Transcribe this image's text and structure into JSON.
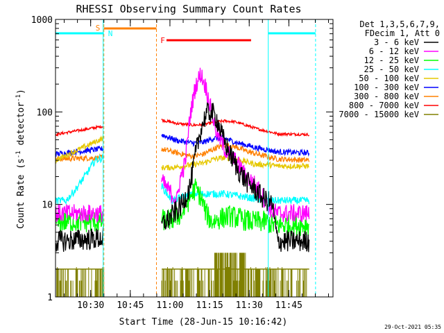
{
  "chart_data": {
    "type": "line",
    "title": "RHESSI Observing Summary Count Rates",
    "xlabel": "Start Time (28-Jun-15 10:16:42)",
    "ylabel_main": "Count Rate (s",
    "ylabel_sup": "-1",
    "ylabel_tail": " detector",
    "ylabel_end": ")",
    "yscale": "log",
    "x_unit": "minutes after 10:16:42",
    "xlim": [
      0,
      105
    ],
    "ylim": [
      1,
      1000
    ],
    "x_ticks": [
      {
        "value": 13.3,
        "label": "10:30"
      },
      {
        "value": 28.3,
        "label": "10:45"
      },
      {
        "value": 43.3,
        "label": "11:00"
      },
      {
        "value": 58.3,
        "label": "11:15"
      },
      {
        "value": 73.3,
        "label": "11:30"
      },
      {
        "value": 88.3,
        "label": "11:45"
      }
    ],
    "y_ticks": [
      {
        "value": 1,
        "label": "1"
      },
      {
        "value": 10,
        "label": "10"
      },
      {
        "value": 100,
        "label": "100"
      },
      {
        "value": 1000,
        "label": "1000"
      }
    ],
    "legend_header": [
      "Det 1,3,5,6,7,9,",
      "FDecim 1, Att 0"
    ],
    "series": [
      {
        "name": "3 - 6 keV",
        "color": "#000000",
        "points": [
          [
            0,
            4
          ],
          [
            18,
            4.3
          ],
          [
            40,
            6
          ],
          [
            43,
            7
          ],
          [
            48,
            10
          ],
          [
            51,
            16
          ],
          [
            53,
            35
          ],
          [
            55,
            65
          ],
          [
            57,
            95
          ],
          [
            59,
            100
          ],
          [
            61,
            85
          ],
          [
            63,
            55
          ],
          [
            66,
            35
          ],
          [
            69,
            24
          ],
          [
            72,
            18
          ],
          [
            75,
            15
          ],
          [
            78,
            12
          ],
          [
            80,
            11
          ],
          [
            82,
            10
          ],
          [
            84,
            4
          ],
          [
            96,
            4
          ]
        ]
      },
      {
        "name": "6 - 12 keV",
        "color": "#ff00ff",
        "points": [
          [
            0,
            8
          ],
          [
            18,
            8
          ],
          [
            40,
            18
          ],
          [
            43,
            14
          ],
          [
            46,
            11
          ],
          [
            47,
            18
          ],
          [
            49,
            28
          ],
          [
            51,
            95
          ],
          [
            53,
            190
          ],
          [
            55,
            260
          ],
          [
            57,
            180
          ],
          [
            59,
            100
          ],
          [
            61,
            60
          ],
          [
            64,
            40
          ],
          [
            67,
            32
          ],
          [
            70,
            25
          ],
          [
            72,
            20
          ],
          [
            75,
            17
          ],
          [
            78,
            13
          ],
          [
            80,
            10
          ],
          [
            82,
            8.5
          ],
          [
            84,
            8
          ],
          [
            96,
            8
          ]
        ]
      },
      {
        "name": "12 - 25 keV",
        "color": "#00ff00",
        "points": [
          [
            0,
            6.5
          ],
          [
            18,
            6.5
          ],
          [
            40,
            6.8
          ],
          [
            44,
            6.8
          ],
          [
            48,
            8
          ],
          [
            51,
            12
          ],
          [
            53,
            15
          ],
          [
            55,
            12
          ],
          [
            57,
            8
          ],
          [
            59,
            6.5
          ],
          [
            62,
            7
          ],
          [
            66,
            7.5
          ],
          [
            70,
            7
          ],
          [
            74,
            6.5
          ],
          [
            78,
            6.5
          ],
          [
            80,
            6.5
          ],
          [
            82,
            6
          ],
          [
            84,
            6
          ],
          [
            96,
            6
          ]
        ]
      },
      {
        "name": "25 - 50 keV",
        "color": "#00ffff",
        "points": [
          [
            0,
            11
          ],
          [
            4,
            11
          ],
          [
            8,
            15
          ],
          [
            12,
            22
          ],
          [
            15,
            30
          ],
          [
            18,
            32
          ],
          [
            40,
            16
          ],
          [
            44,
            11
          ],
          [
            48,
            12
          ],
          [
            52,
            13
          ],
          [
            56,
            13
          ],
          [
            60,
            13
          ],
          [
            64,
            13
          ],
          [
            68,
            12.5
          ],
          [
            72,
            12
          ],
          [
            76,
            11.5
          ],
          [
            80,
            11
          ],
          [
            84,
            11
          ],
          [
            96,
            11
          ]
        ]
      },
      {
        "name": "50 - 100 keV",
        "color": "#e6c800",
        "points": [
          [
            0,
            30
          ],
          [
            18,
            52
          ],
          [
            40,
            25
          ],
          [
            44,
            25
          ],
          [
            48,
            26
          ],
          [
            52,
            27
          ],
          [
            56,
            28
          ],
          [
            60,
            31
          ],
          [
            64,
            32
          ],
          [
            68,
            31
          ],
          [
            72,
            29
          ],
          [
            76,
            27
          ],
          [
            80,
            27
          ],
          [
            84,
            26
          ],
          [
            96,
            26
          ]
        ]
      },
      {
        "name": "100 - 300 keV",
        "color": "#0000ff",
        "points": [
          [
            0,
            35
          ],
          [
            18,
            40
          ],
          [
            40,
            57
          ],
          [
            46,
            49
          ],
          [
            52,
            46
          ],
          [
            56,
            47
          ],
          [
            60,
            52
          ],
          [
            64,
            52
          ],
          [
            68,
            47
          ],
          [
            72,
            44
          ],
          [
            76,
            41
          ],
          [
            80,
            39
          ],
          [
            84,
            37
          ],
          [
            96,
            36
          ]
        ]
      },
      {
        "name": "300 - 800 keV",
        "color": "#ff8000",
        "points": [
          [
            0,
            31
          ],
          [
            18,
            32
          ],
          [
            40,
            40
          ],
          [
            46,
            36
          ],
          [
            52,
            33
          ],
          [
            56,
            35
          ],
          [
            60,
            40
          ],
          [
            64,
            44
          ],
          [
            68,
            42
          ],
          [
            72,
            38
          ],
          [
            76,
            35
          ],
          [
            80,
            33
          ],
          [
            84,
            31
          ],
          [
            96,
            30
          ]
        ]
      },
      {
        "name": "800 - 7000 keV",
        "color": "#ff0000",
        "points": [
          [
            0,
            57
          ],
          [
            18,
            70
          ],
          [
            40,
            82
          ],
          [
            46,
            75
          ],
          [
            52,
            72
          ],
          [
            56,
            73
          ],
          [
            60,
            77
          ],
          [
            64,
            80
          ],
          [
            68,
            78
          ],
          [
            72,
            72
          ],
          [
            76,
            66
          ],
          [
            80,
            62
          ],
          [
            84,
            58
          ],
          [
            96,
            57
          ]
        ]
      },
      {
        "name": "7000 - 15000 keV",
        "color": "#808000",
        "points": []
      }
    ],
    "annotations": [
      {
        "label": "S",
        "color": "#ff8000",
        "x": 18.3
      },
      {
        "label": "N",
        "color": "#00ffff",
        "x": 18.3
      },
      {
        "label": "F",
        "color": "#ff0000",
        "x": 41
      }
    ],
    "saa_interval": [
      18.3,
      38.2
    ],
    "night_intervals": [
      [
        0,
        18.3
      ],
      [
        80.5,
        98.4
      ]
    ],
    "flare_interval": [
      42,
      74
    ],
    "footer_stamp": "29-Oct-2021 05:35"
  }
}
